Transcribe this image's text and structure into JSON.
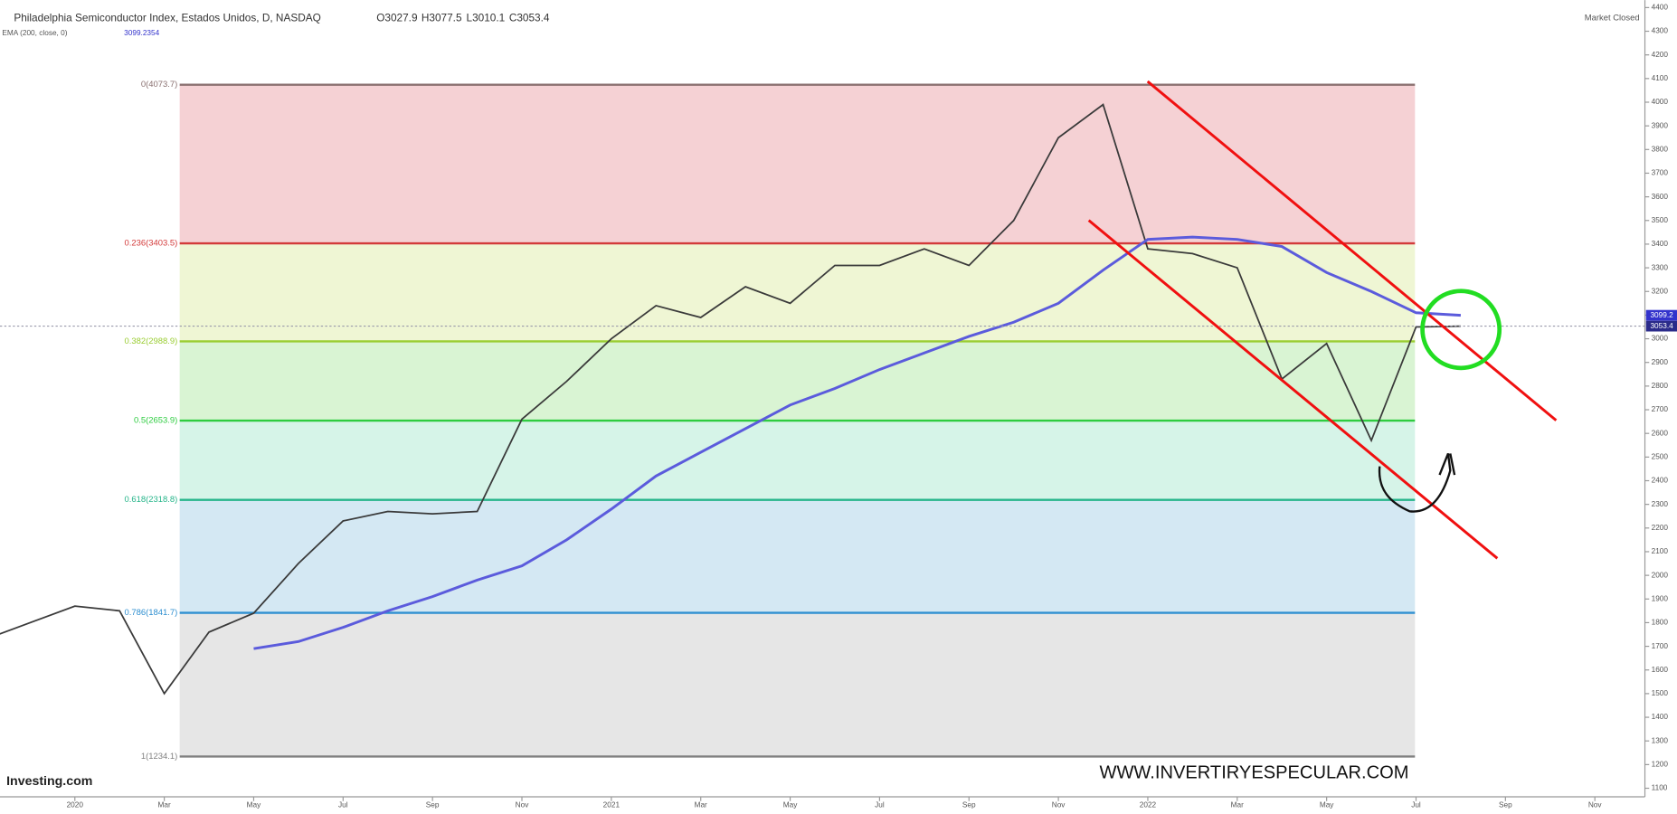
{
  "header": {
    "title": "Philadelphia Semiconductor Index, Estados Unidos, D, NASDAQ",
    "ohlc_labels": [
      "O3027.9",
      "H3077.5",
      "L3010.1",
      "C3053.4"
    ],
    "indicator": "EMA (200, close, 0)",
    "indicator_value": "3099.2354",
    "status": "Market Closed"
  },
  "branding": {
    "logo": "Investing.com",
    "watermark": "WWW.INVERTIRYESPECULAR.COM"
  },
  "chart_data": {
    "type": "line",
    "x": [
      "2019-11",
      "2019-12",
      "2020-01",
      "2020-02",
      "2020-03",
      "2020-04",
      "2020-05",
      "2020-06",
      "2020-07",
      "2020-08",
      "2020-09",
      "2020-10",
      "2020-11",
      "2020-12",
      "2021-01",
      "2021-02",
      "2021-03",
      "2021-04",
      "2021-05",
      "2021-06",
      "2021-07",
      "2021-08",
      "2021-09",
      "2021-10",
      "2021-11",
      "2021-12",
      "2022-01",
      "2022-02",
      "2022-03",
      "2022-04",
      "2022-05",
      "2022-06",
      "2022-07",
      "2022-08"
    ],
    "series": [
      {
        "name": "Philadelphia Semiconductor Index",
        "color": "#3a3a3a",
        "values": [
          1730,
          1800,
          1870,
          1850,
          1500,
          1760,
          1840,
          2050,
          2230,
          2270,
          2260,
          2270,
          2660,
          2820,
          3000,
          3140,
          3090,
          3220,
          3150,
          3310,
          3310,
          3380,
          3310,
          3500,
          3850,
          3990,
          3380,
          3360,
          3300,
          2830,
          2980,
          2570,
          3050,
          3053.4
        ]
      },
      {
        "name": "EMA (200, close, 0)",
        "color": "#5b5bdc",
        "values": [
          null,
          null,
          null,
          null,
          null,
          null,
          1690,
          1720,
          1780,
          1850,
          1910,
          1980,
          2040,
          2150,
          2280,
          2420,
          2520,
          2620,
          2720,
          2790,
          2870,
          2940,
          3010,
          3070,
          3150,
          3290,
          3420,
          3430,
          3420,
          3390,
          3280,
          3200,
          3110,
          3099.2
        ]
      }
    ],
    "fib_levels": [
      {
        "value": 4073.7,
        "label": "0(4073.7)",
        "color": "#8a7070",
        "zone": "#f5d1d4"
      },
      {
        "value": 3403.5,
        "label": "0.236(3403.5)",
        "color": "#d33a3a",
        "zone": "#eff6d4"
      },
      {
        "value": 2988.9,
        "label": "0.382(2988.9)",
        "color": "#9acd32",
        "zone": "#d9f4d3"
      },
      {
        "value": 2653.9,
        "label": "0.5(2653.9)",
        "color": "#2ecc40",
        "zone": "#d6f4e8"
      },
      {
        "value": 2318.8,
        "label": "0.618(2318.8)",
        "color": "#26b58a",
        "zone": "#d4e8f3"
      },
      {
        "value": 1841.7,
        "label": "0.786(1841.7)",
        "color": "#2f8fd0",
        "zone": "#e6e6e6"
      },
      {
        "value": 1234.1,
        "label": "1(1234.1)",
        "color": "#808080"
      }
    ],
    "ylim": [
      1100,
      4400
    ],
    "yticks": [
      1100,
      1200,
      1300,
      1400,
      1500,
      1600,
      1700,
      1800,
      1900,
      2000,
      2100,
      2200,
      2300,
      2400,
      2500,
      2600,
      2700,
      2800,
      2900,
      3000,
      3100,
      3200,
      3300,
      3400,
      3500,
      3600,
      3700,
      3800,
      3900,
      4000,
      4100,
      4200,
      4300,
      4400
    ],
    "xticks": [
      {
        "value": "2020-01",
        "label": "2020"
      },
      {
        "value": "2020-03",
        "label": "Mar"
      },
      {
        "value": "2020-05",
        "label": "May"
      },
      {
        "value": "2020-07",
        "label": "Jul"
      },
      {
        "value": "2020-09",
        "label": "Sep"
      },
      {
        "value": "2020-11",
        "label": "Nov"
      },
      {
        "value": "2021-01",
        "label": "2021"
      },
      {
        "value": "2021-03",
        "label": "Mar"
      },
      {
        "value": "2021-05",
        "label": "May"
      },
      {
        "value": "2021-07",
        "label": "Jul"
      },
      {
        "value": "2021-09",
        "label": "Sep"
      },
      {
        "value": "2021-11",
        "label": "Nov"
      },
      {
        "value": "2022-01",
        "label": "2022"
      },
      {
        "value": "2022-03",
        "label": "Mar"
      },
      {
        "value": "2022-05",
        "label": "May"
      },
      {
        "value": "2022-07",
        "label": "Jul"
      },
      {
        "value": "2022-09",
        "label": "Sep"
      },
      {
        "value": "2022-11",
        "label": "Nov"
      }
    ]
  }
}
